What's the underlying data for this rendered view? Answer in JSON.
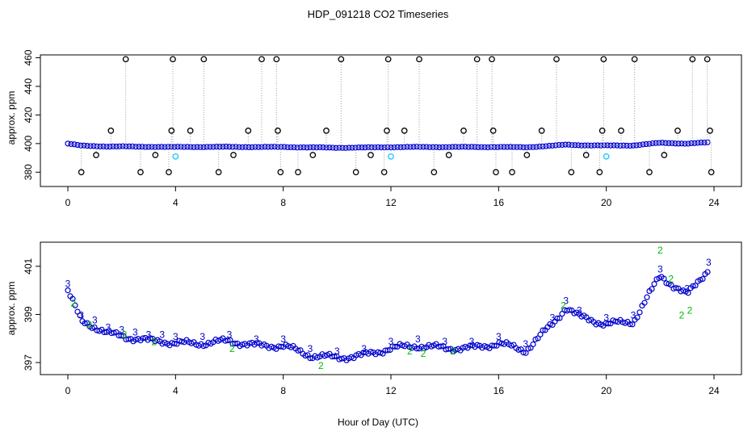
{
  "figure": {
    "title": "HDP_091218  CO2 Timeseries",
    "xlabel": "Hour of Day (UTC)"
  },
  "colors": {
    "frame": "#000000",
    "series_blue": "#0000cc",
    "series_cyan": "#33ccff",
    "series_green": "#00bb00",
    "spike": "#000000",
    "dotted": "#999999"
  },
  "chart_data": [
    {
      "type": "scatter",
      "panel": "top",
      "ylabel": "approx. ppm",
      "xlim": [
        0,
        24
      ],
      "ylim": [
        370,
        462
      ],
      "x_ticks": [
        "0",
        "4",
        "8",
        "12",
        "16",
        "20",
        "24"
      ],
      "y_ticks": [
        "380",
        "400",
        "420",
        "440",
        "460"
      ],
      "baseline": {
        "x": [
          0,
          0.5,
          1,
          1.5,
          2,
          2.5,
          3,
          3.5,
          4,
          5,
          6,
          7,
          8,
          9,
          10,
          11,
          12,
          13,
          14,
          15,
          16,
          17,
          18,
          18.5,
          19,
          20,
          21,
          22,
          23,
          23.8
        ],
        "y": [
          400,
          398.5,
          398.2,
          398,
          398,
          397.8,
          397.8,
          397.7,
          397.6,
          397.7,
          397.7,
          397.6,
          397.6,
          397.3,
          397.1,
          397.2,
          397.5,
          397.6,
          397.6,
          397.6,
          397.6,
          397.4,
          398.5,
          399.2,
          398.9,
          398.6,
          398.7,
          400.5,
          400,
          400.8
        ]
      },
      "spikes": {
        "x": [
          0.5,
          1.05,
          1.6,
          2.15,
          2.7,
          3.25,
          3.75,
          3.85,
          3.9,
          4.55,
          5.05,
          5.6,
          6.15,
          6.7,
          7.2,
          7.75,
          7.8,
          7.9,
          8.55,
          9.1,
          9.6,
          10.15,
          10.7,
          11.25,
          11.75,
          11.85,
          11.9,
          12.5,
          13.05,
          13.6,
          14.15,
          14.7,
          15.2,
          15.75,
          15.8,
          15.9,
          16.5,
          17.05,
          17.6,
          18.15,
          18.7,
          19.25,
          19.75,
          19.85,
          19.9,
          20.55,
          21.05,
          21.6,
          22.15,
          22.65,
          23.2,
          23.75,
          23.85,
          23.9
        ],
        "y": [
          380,
          392,
          409,
          459,
          380,
          392,
          380,
          409,
          459,
          409,
          459,
          380,
          392,
          409,
          459,
          459,
          409,
          380,
          380,
          392,
          409,
          459,
          380,
          392,
          380,
          409,
          459,
          409,
          459,
          380,
          392,
          409,
          459,
          459,
          409,
          380,
          380,
          392,
          409,
          459,
          380,
          392,
          380,
          409,
          459,
          409,
          459,
          380,
          392,
          409,
          459,
          459,
          409,
          380
        ]
      },
      "cyan_points": {
        "x": [
          4.0,
          12.0,
          20.0
        ],
        "y": [
          391,
          391,
          391
        ]
      }
    },
    {
      "type": "scatter",
      "panel": "bottom",
      "ylabel": "approx. ppm",
      "xlim": [
        0,
        24
      ],
      "ylim": [
        396.5,
        402
      ],
      "x_ticks": [
        "0",
        "4",
        "8",
        "12",
        "16",
        "20",
        "24"
      ],
      "y_ticks": [
        "397",
        "399",
        "401"
      ],
      "series": [
        {
          "name": "3",
          "marker": "3",
          "color": "blue",
          "x": [
            0,
            0.5,
            1,
            1.5,
            2,
            2.5,
            3,
            3.5,
            4,
            5,
            6,
            7,
            8,
            9,
            10,
            11,
            12,
            13,
            14,
            15,
            16,
            17,
            18,
            18.5,
            19,
            20,
            21,
            22,
            23,
            23.8
          ],
          "y": [
            400,
            398.7,
            398.5,
            398.2,
            398.1,
            398,
            397.9,
            397.9,
            397.8,
            397.8,
            397.9,
            397.7,
            397.7,
            397.3,
            397.2,
            397.3,
            397.6,
            397.7,
            397.6,
            397.6,
            397.8,
            397.5,
            398.6,
            399.3,
            398.9,
            398.6,
            398.7,
            400.6,
            399.8,
            400.9
          ]
        },
        {
          "name": "2",
          "marker": "2",
          "color": "green",
          "x": [
            0.2,
            0.8,
            2.1,
            3.2,
            6.1,
            9.4,
            12.7,
            13.2,
            14.3,
            18.4,
            22.0,
            22.4,
            22.8,
            23.1
          ],
          "y": [
            399.5,
            398.6,
            398.2,
            397.9,
            397.6,
            396.9,
            397.5,
            397.4,
            397.5,
            399.4,
            401.7,
            400.5,
            399.0,
            399.2
          ]
        }
      ]
    }
  ]
}
